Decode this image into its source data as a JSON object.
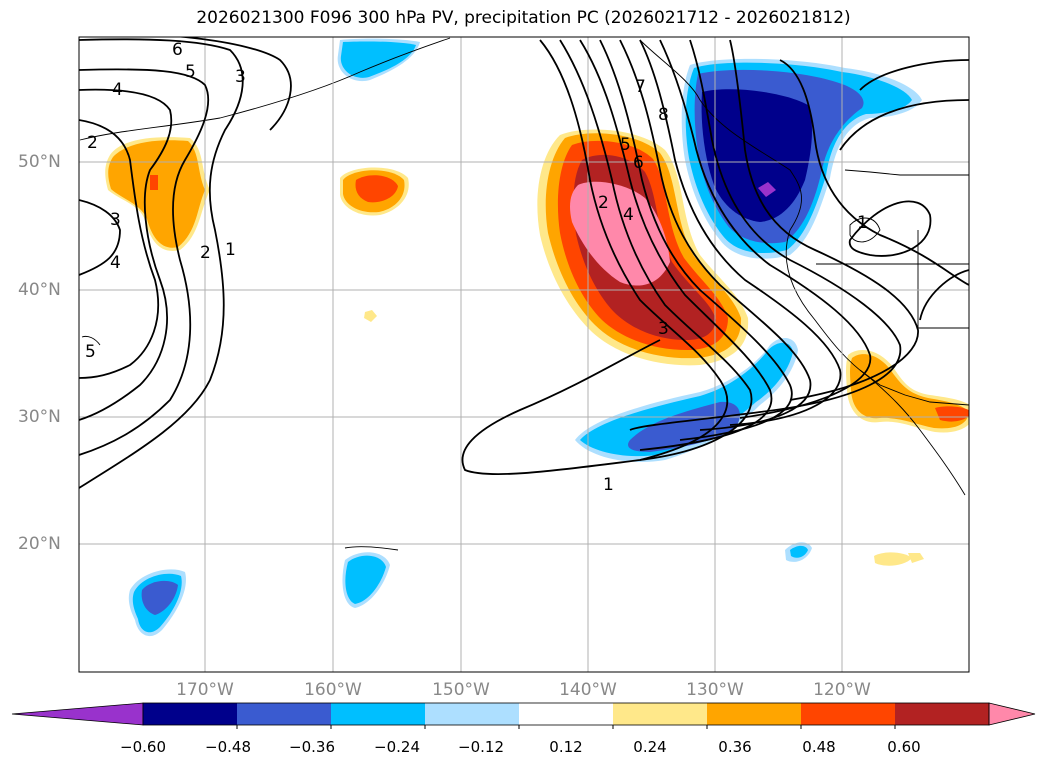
{
  "title": "2026021300 F096 300 hPa PV, precipitation PC (2026021712 - 2026021812)",
  "lat_labels": [
    "50°N",
    "40°N",
    "30°N",
    "20°N"
  ],
  "lon_labels": [
    "170°W",
    "160°W",
    "150°W",
    "140°W",
    "130°W",
    "120°W"
  ],
  "pv_contour_labels": [
    "6",
    "5",
    "3",
    "4",
    "2",
    "3",
    "2",
    "1",
    "4",
    "5",
    "7",
    "8",
    "5",
    "6",
    "2",
    "4",
    "3",
    "1",
    "1"
  ],
  "colorbar": {
    "ticks": [
      "−0.60",
      "−0.48",
      "−0.36",
      "−0.24",
      "−0.12",
      "0.12",
      "0.24",
      "0.36",
      "0.48",
      "0.60"
    ],
    "colors": [
      "#9932CC",
      "#00008B",
      "#3A5BD0",
      "#00BFFF",
      "#ADDFFF",
      "#FFFFFF",
      "#FFE88A",
      "#FFA500",
      "#FF4500",
      "#B22222",
      "#FF88AA"
    ]
  }
}
